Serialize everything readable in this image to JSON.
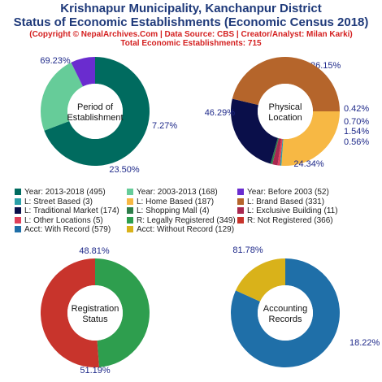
{
  "header": {
    "title_line1": "Krishnapur Municipality, Kanchanpur District",
    "title_line2": "Status of Economic Establishments (Economic Census 2018)",
    "credit": "(Copyright © NepalArchives.Com | Data Source: CBS | Creator/Analyst: Milan Karki)",
    "total": "Total Economic Establishments: 715"
  },
  "legend": [
    {
      "label": "Year: 2013-2018 (495)",
      "color": "#006b5f"
    },
    {
      "label": "Year: 2003-2013 (168)",
      "color": "#66cc99"
    },
    {
      "label": "Year: Before 2003 (52)",
      "color": "#6a2ccf"
    },
    {
      "label": "L: Street Based (3)",
      "color": "#2aa0a8"
    },
    {
      "label": "L: Home Based (187)",
      "color": "#f7b844"
    },
    {
      "label": "L: Brand Based (331)",
      "color": "#b5652b"
    },
    {
      "label": "L: Traditional Market (174)",
      "color": "#0a0f4a"
    },
    {
      "label": "L: Shopping Mall (4)",
      "color": "#2e7d4a"
    },
    {
      "label": "L: Exclusive Building (11)",
      "color": "#a82850"
    },
    {
      "label": "L: Other Locations (5)",
      "color": "#e0405a"
    },
    {
      "label": "R: Legally Registered (349)",
      "color": "#2e9e4e"
    },
    {
      "label": "R: Not Registered (366)",
      "color": "#c8342c"
    },
    {
      "label": "Acct: With Record (579)",
      "color": "#1f6fa8"
    },
    {
      "label": "Acct: Without Record (129)",
      "color": "#d9b21a"
    }
  ],
  "chart_data": [
    {
      "type": "pie",
      "center_label": [
        "Period of",
        "Establishment"
      ],
      "start_angle_deg": 0,
      "slices": [
        {
          "name": "Year: 2013-2018",
          "value": 495,
          "percent": 69.23,
          "label": "69.23%",
          "color": "#006b5f"
        },
        {
          "name": "Year: 2003-2013",
          "value": 168,
          "percent": 23.5,
          "label": "23.50%",
          "color": "#66cc99"
        },
        {
          "name": "Year: Before 2003",
          "value": 52,
          "percent": 7.27,
          "label": "7.27%",
          "color": "#6a2ccf"
        }
      ]
    },
    {
      "type": "pie",
      "center_label": [
        "Physical",
        "Location"
      ],
      "start_angle_deg": 90,
      "slices": [
        {
          "name": "L: Home Based",
          "value": 187,
          "percent": 26.15,
          "label": "26.15%",
          "color": "#f7b844"
        },
        {
          "name": "L: Street Based",
          "value": 3,
          "percent": 0.42,
          "label": "0.42%",
          "color": "#2aa0a8"
        },
        {
          "name": "L: Other Locations",
          "value": 5,
          "percent": 0.7,
          "label": "0.70%",
          "color": "#e0405a"
        },
        {
          "name": "L: Exclusive Building",
          "value": 11,
          "percent": 1.54,
          "label": "1.54%",
          "color": "#a82850"
        },
        {
          "name": "L: Shopping Mall",
          "value": 4,
          "percent": 0.56,
          "label": "0.56%",
          "color": "#2e7d4a"
        },
        {
          "name": "L: Traditional Market",
          "value": 174,
          "percent": 24.34,
          "label": "24.34%",
          "color": "#0a0f4a"
        },
        {
          "name": "L: Brand Based",
          "value": 331,
          "percent": 46.29,
          "label": "46.29%",
          "color": "#b5652b"
        }
      ]
    },
    {
      "type": "pie",
      "center_label": [
        "Registration",
        "Status"
      ],
      "start_angle_deg": 0,
      "slices": [
        {
          "name": "R: Legally Registered",
          "value": 349,
          "percent": 48.81,
          "label": "48.81%",
          "color": "#2e9e4e"
        },
        {
          "name": "R: Not Registered",
          "value": 366,
          "percent": 51.19,
          "label": "51.19%",
          "color": "#c8342c"
        }
      ]
    },
    {
      "type": "pie",
      "center_label": [
        "Accounting",
        "Records"
      ],
      "start_angle_deg": 0,
      "slices": [
        {
          "name": "Acct: With Record",
          "value": 579,
          "percent": 81.78,
          "label": "81.78%",
          "color": "#1f6fa8"
        },
        {
          "name": "Acct: Without Record",
          "value": 129,
          "percent": 18.22,
          "label": "18.22%",
          "color": "#d9b21a"
        }
      ]
    }
  ]
}
